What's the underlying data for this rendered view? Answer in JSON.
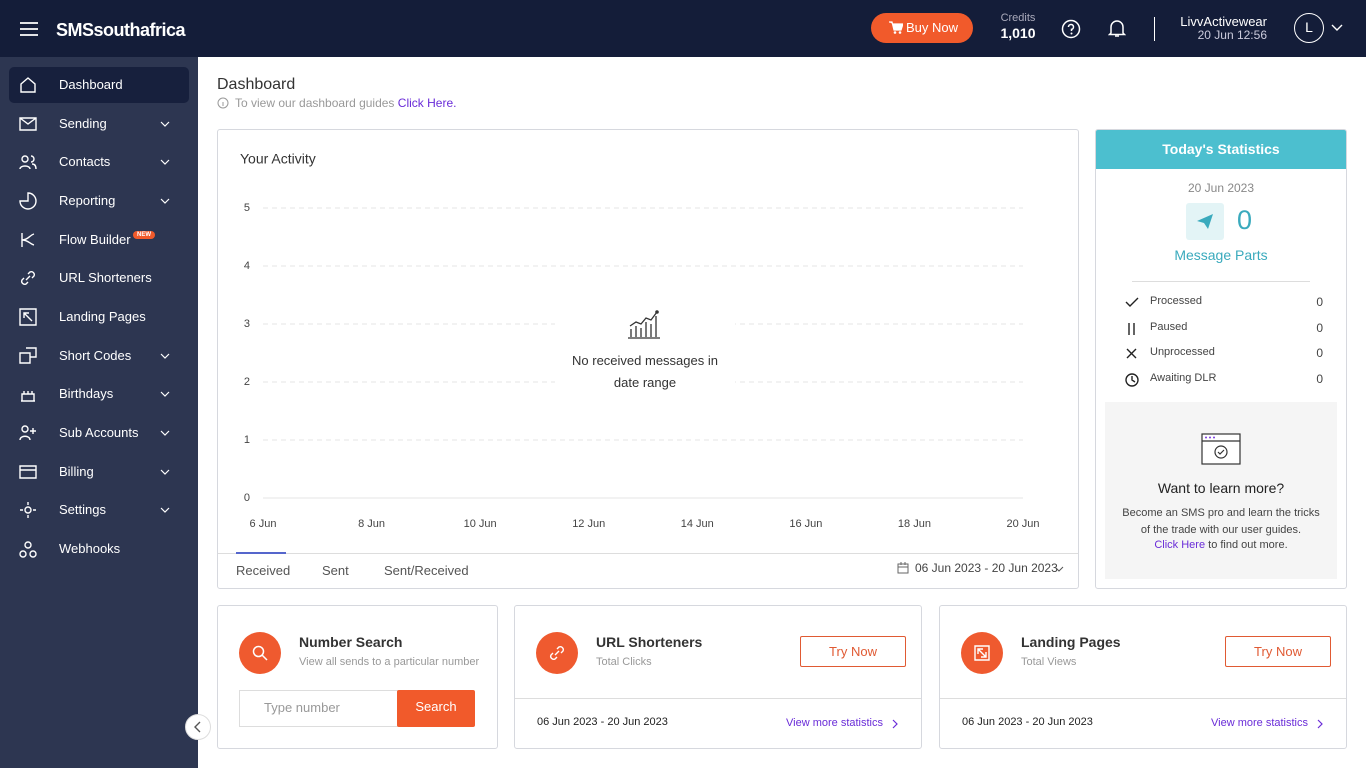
{
  "header": {
    "brand": "SMSsouthafrica",
    "buy_now": "Buy Now",
    "credits_label": "Credits",
    "credits": "1,010",
    "account_name": "LivvActivewear",
    "datetime": "20 Jun 12:56",
    "avatar_initial": "L"
  },
  "sidebar": {
    "items": [
      {
        "label": "Dashboard"
      },
      {
        "label": "Sending"
      },
      {
        "label": "Contacts"
      },
      {
        "label": "Reporting"
      },
      {
        "label": "Flow Builder",
        "badge": "NEW"
      },
      {
        "label": "URL Shorteners"
      },
      {
        "label": "Landing Pages"
      },
      {
        "label": "Short Codes"
      },
      {
        "label": "Birthdays"
      },
      {
        "label": "Sub Accounts"
      },
      {
        "label": "Billing"
      },
      {
        "label": "Settings"
      },
      {
        "label": "Webhooks"
      }
    ]
  },
  "page": {
    "title": "Dashboard",
    "guide_text": "To view our dashboard guides",
    "guide_link": "Click Here."
  },
  "activity": {
    "title": "Your Activity",
    "empty_message": "No received messages in date range",
    "ylim": [
      0,
      5
    ],
    "yticks": [
      0,
      1,
      2,
      3,
      4,
      5
    ],
    "xticks": [
      "6 Jun",
      "8 Jun",
      "10 Jun",
      "12 Jun",
      "14 Jun",
      "16 Jun",
      "18 Jun",
      "20 Jun"
    ],
    "grid": true,
    "tabs": [
      "Received",
      "Sent",
      "Sent/Received"
    ],
    "date_range": "06 Jun 2023 - 20 Jun 2023"
  },
  "todays_statistics": {
    "title": "Today's Statistics",
    "date": "20 Jun 2023",
    "message_parts": 0,
    "message_parts_label": "Message Parts",
    "rows": [
      {
        "label": "Processed",
        "value": 0
      },
      {
        "label": "Paused",
        "value": 0
      },
      {
        "label": "Unprocessed",
        "value": 0
      },
      {
        "label": "Awaiting DLR",
        "value": 0
      }
    ],
    "learn_more": {
      "title": "Want to learn more?",
      "text": "Become an SMS pro and learn the tricks of the trade with our user guides.",
      "link": "Click Here",
      "link_suffix": "to find out more."
    }
  },
  "cards": [
    {
      "title": "Number Search",
      "subtitle": "View all sends to a particular number",
      "input_placeholder": "Type number",
      "button": "Search"
    },
    {
      "title": "URL Shorteners",
      "subtitle": "Total Clicks",
      "button": "Try Now",
      "date_range": "06 Jun 2023 - 20 Jun 2023",
      "link": "View more statistics"
    },
    {
      "title": "Landing Pages",
      "subtitle": "Total Views",
      "button": "Try Now",
      "date_range": "06 Jun 2023 - 20 Jun 2023",
      "link": "View more statistics"
    }
  ]
}
